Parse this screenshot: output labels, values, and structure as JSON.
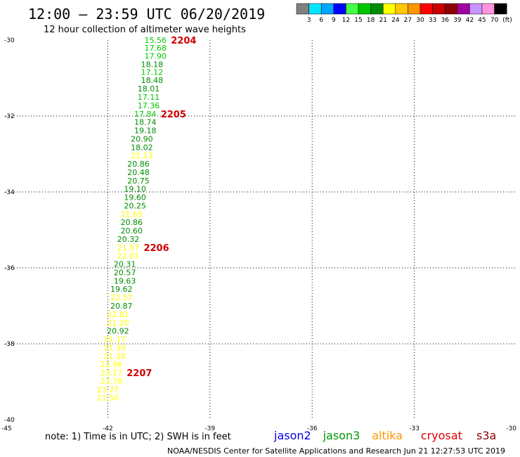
{
  "header": {
    "title": "12:00 – 23:59 UTC 06/20/2019",
    "subtitle": "12 hour collection of altimeter wave heights"
  },
  "colorbar": {
    "labels": [
      "3",
      "6",
      "9",
      "12",
      "15",
      "18",
      "21",
      "24",
      "27",
      "30",
      "33",
      "36",
      "39",
      "42",
      "45",
      "70"
    ],
    "unit": "(ft)",
    "colors": [
      "#808080",
      "#00e5ff",
      "#00a6ff",
      "#0000ff",
      "#44ff44",
      "#00c800",
      "#008c00",
      "#ffff00",
      "#ffc800",
      "#ff9600",
      "#ff0000",
      "#c80000",
      "#8c0000",
      "#a000a0",
      "#c896ff",
      "#ff96dc",
      "#000000"
    ]
  },
  "footer": {
    "note": "note:  1) Time is in UTC;  2) SWH is in feet",
    "legend": [
      {
        "name": "jason2",
        "color": "#0000e0"
      },
      {
        "name": "jason3",
        "color": "#009600"
      },
      {
        "name": "altika",
        "color": "#ff9600"
      },
      {
        "name": "cryosat",
        "color": "#e00000"
      },
      {
        "name": "s3a",
        "color": "#8c0000"
      }
    ],
    "credit": "NOAA/NESDIS Center for Satellite Applications and Research      Jun 21 12:27:53 UTC 2019"
  },
  "chart_data": {
    "type": "scatter",
    "title": "12:00 – 23:59 UTC 06/20/2019",
    "subtitle": "12 hour collection of altimeter wave heights",
    "xlim": [
      -45,
      -30
    ],
    "ylim": [
      -40,
      -30
    ],
    "x_ticks": [
      -45,
      -42,
      -39,
      -36,
      -33,
      -30
    ],
    "y_ticks": [
      -30,
      -32,
      -34,
      -36,
      -38,
      -40
    ],
    "grid": true,
    "points": [
      {
        "lon": -40.6,
        "lat": -30.0,
        "swh": "15.56"
      },
      {
        "lon": -40.6,
        "lat": -30.2,
        "swh": "17.68"
      },
      {
        "lon": -40.6,
        "lat": -30.42,
        "swh": "17.90"
      },
      {
        "lon": -40.7,
        "lat": -30.64,
        "swh": "18.18"
      },
      {
        "lon": -40.7,
        "lat": -30.84,
        "swh": "17.12"
      },
      {
        "lon": -40.7,
        "lat": -31.06,
        "swh": "18.48"
      },
      {
        "lon": -40.8,
        "lat": -31.28,
        "swh": "18.01"
      },
      {
        "lon": -40.8,
        "lat": -31.5,
        "swh": "17.11"
      },
      {
        "lon": -40.8,
        "lat": -31.72,
        "swh": "17.36"
      },
      {
        "lon": -40.9,
        "lat": -31.94,
        "swh": "17.84"
      },
      {
        "lon": -40.9,
        "lat": -32.16,
        "swh": "18.74"
      },
      {
        "lon": -40.9,
        "lat": -32.38,
        "swh": "19.18"
      },
      {
        "lon": -41.0,
        "lat": -32.6,
        "swh": "20.90"
      },
      {
        "lon": -41.0,
        "lat": -32.82,
        "swh": "18.02"
      },
      {
        "lon": -41.0,
        "lat": -33.04,
        "swh": "21.13"
      },
      {
        "lon": -41.1,
        "lat": -33.26,
        "swh": "20.86"
      },
      {
        "lon": -41.1,
        "lat": -33.48,
        "swh": "20.48"
      },
      {
        "lon": -41.1,
        "lat": -33.7,
        "swh": "20.75"
      },
      {
        "lon": -41.2,
        "lat": -33.92,
        "swh": "19.10"
      },
      {
        "lon": -41.2,
        "lat": -34.14,
        "swh": "19.60"
      },
      {
        "lon": -41.2,
        "lat": -34.36,
        "swh": "20.25"
      },
      {
        "lon": -41.3,
        "lat": -34.58,
        "swh": "21.65"
      },
      {
        "lon": -41.3,
        "lat": -34.8,
        "swh": "20.86"
      },
      {
        "lon": -41.3,
        "lat": -35.02,
        "swh": "20.60"
      },
      {
        "lon": -41.4,
        "lat": -35.24,
        "swh": "20.32"
      },
      {
        "lon": -41.4,
        "lat": -35.46,
        "swh": "21.57"
      },
      {
        "lon": -41.4,
        "lat": -35.68,
        "swh": "22.01"
      },
      {
        "lon": -41.5,
        "lat": -35.9,
        "swh": "20.31"
      },
      {
        "lon": -41.5,
        "lat": -36.12,
        "swh": "20.57"
      },
      {
        "lon": -41.5,
        "lat": -36.34,
        "swh": "19.63"
      },
      {
        "lon": -41.6,
        "lat": -36.56,
        "swh": "19.62"
      },
      {
        "lon": -41.6,
        "lat": -36.78,
        "swh": "22.57"
      },
      {
        "lon": -41.6,
        "lat": -37.0,
        "swh": "20.87"
      },
      {
        "lon": -41.7,
        "lat": -37.22,
        "swh": "22.81"
      },
      {
        "lon": -41.7,
        "lat": -37.44,
        "swh": "21.20"
      },
      {
        "lon": -41.7,
        "lat": -37.66,
        "swh": "20.92"
      },
      {
        "lon": -41.8,
        "lat": -37.88,
        "swh": "21.17"
      },
      {
        "lon": -41.8,
        "lat": -38.1,
        "swh": "21.39"
      },
      {
        "lon": -41.8,
        "lat": -38.32,
        "swh": "21.28"
      },
      {
        "lon": -41.9,
        "lat": -38.54,
        "swh": "22.96"
      },
      {
        "lon": -41.9,
        "lat": -38.76,
        "swh": "23.17"
      },
      {
        "lon": -41.9,
        "lat": -38.98,
        "swh": "23.78"
      },
      {
        "lon": -42.0,
        "lat": -39.2,
        "swh": "23.27"
      },
      {
        "lon": -42.0,
        "lat": -39.42,
        "swh": "21.50"
      }
    ],
    "cycle_labels": [
      {
        "text": "2204",
        "lat": -30.0
      },
      {
        "text": "2205",
        "lat": -31.94
      },
      {
        "text": "2206",
        "lat": -35.46
      },
      {
        "text": "2207",
        "lat": -38.76
      }
    ]
  }
}
